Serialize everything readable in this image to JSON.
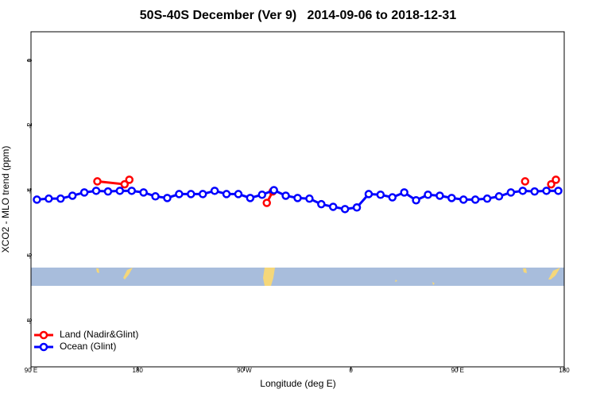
{
  "chart_data": {
    "type": "line",
    "title": "50S-40S December (Ver 9)   2014-09-06 to 2018-12-31",
    "x_label": "Longitude (deg E)",
    "y_label": "XCO2 - MLO trend (ppm)",
    "xlim": [
      90,
      540
    ],
    "xticks": [
      {
        "value": 90,
        "label": "90 E"
      },
      {
        "value": 180,
        "label": "180"
      },
      {
        "value": 270,
        "label": "90 W"
      },
      {
        "value": 360,
        "label": "0"
      },
      {
        "value": 450,
        "label": "90 E"
      },
      {
        "value": 540,
        "label": "180"
      }
    ],
    "ylim": [
      -9.4,
      0.88
    ],
    "yticks": [
      0,
      -2,
      -4,
      -6,
      -8
    ],
    "legend_position": "bottom-left",
    "series": [
      {
        "name": "Land (Nadir&Glint)",
        "color": "#ff0000",
        "x": [
          146,
          169,
          173,
          null,
          289,
          294,
          null,
          507,
          null,
          529,
          533
        ],
        "values": [
          -3.71,
          -3.8,
          -3.66,
          null,
          -4.37,
          -4.02,
          null,
          -3.71,
          null,
          -3.8,
          -3.66
        ]
      },
      {
        "name": "Ocean (Glint)",
        "color": "#0000ff",
        "x": [
          95,
          105,
          115,
          125,
          135,
          145,
          155,
          165,
          175,
          185,
          195,
          205,
          215,
          225,
          235,
          245,
          255,
          265,
          275,
          285,
          295,
          305,
          315,
          325,
          335,
          345,
          355,
          365,
          375,
          385,
          395,
          405,
          415,
          425,
          435,
          445,
          455,
          465,
          475,
          485,
          495,
          505,
          515,
          525,
          535
        ],
        "values": [
          -4.27,
          -4.24,
          -4.24,
          -4.15,
          -4.05,
          -4.0,
          -4.02,
          -4.0,
          -4.0,
          -4.05,
          -4.17,
          -4.22,
          -4.1,
          -4.1,
          -4.1,
          -4.0,
          -4.1,
          -4.1,
          -4.22,
          -4.12,
          -3.98,
          -4.15,
          -4.22,
          -4.24,
          -4.41,
          -4.49,
          -4.56,
          -4.51,
          -4.1,
          -4.12,
          -4.2,
          -4.05,
          -4.29,
          -4.12,
          -4.15,
          -4.22,
          -4.27,
          -4.27,
          -4.24,
          -4.17,
          -4.05,
          -4.0,
          -4.02,
          -4.0,
          -4.0
        ]
      }
    ]
  }
}
